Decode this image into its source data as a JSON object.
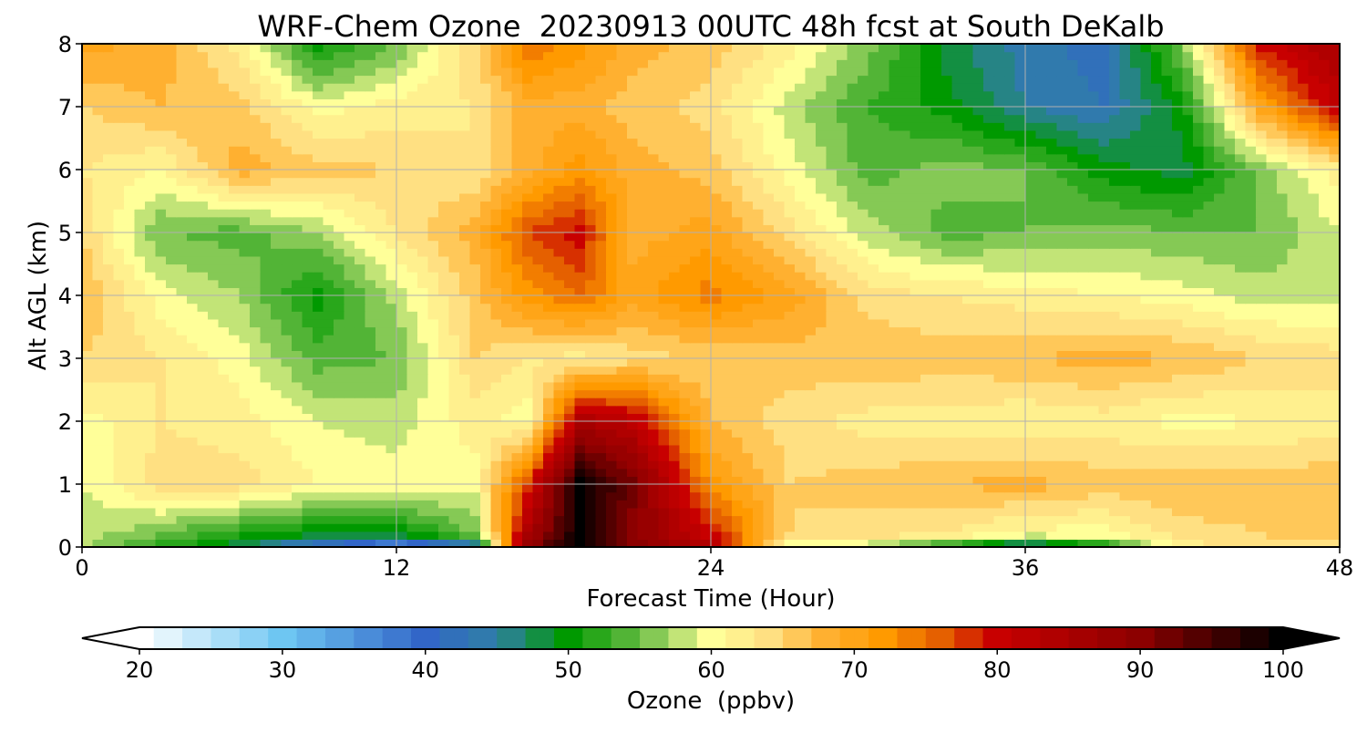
{
  "chart_data": {
    "type": "heatmap",
    "title": "WRF-Chem Ozone  20230913 00UTC 48h fcst at South DeKalb",
    "xlabel": "Forecast Time (Hour)",
    "ylabel": "Alt AGL (km)",
    "xlim": [
      0,
      48
    ],
    "ylim": [
      0,
      8
    ],
    "xticks": [
      0,
      12,
      24,
      36,
      48
    ],
    "yticks": [
      0,
      1,
      2,
      3,
      4,
      5,
      6,
      7,
      8
    ],
    "grid": true,
    "x": [
      0,
      3,
      6,
      9,
      12,
      15,
      17,
      19,
      21,
      24,
      27,
      30,
      33,
      36,
      39,
      42,
      45,
      48
    ],
    "y": [
      0,
      0.2,
      1,
      2,
      3,
      4,
      5,
      6,
      7,
      8
    ],
    "z": [
      [
        57,
        52,
        47,
        40,
        32,
        42,
        90,
        100,
        90,
        85,
        59,
        57,
        50,
        42,
        49,
        62,
        64,
        62
      ],
      [
        58,
        55,
        51,
        49,
        49,
        55,
        85,
        100,
        90,
        80,
        65,
        64,
        63,
        60,
        60,
        64,
        65,
        66
      ],
      [
        59,
        64,
        64,
        61,
        60,
        60,
        78,
        100,
        92,
        72,
        65,
        66,
        67,
        68,
        66,
        67,
        66,
        67
      ],
      [
        60,
        63,
        62,
        59,
        58,
        62,
        60,
        85,
        82,
        67,
        64,
        62,
        62,
        61,
        62,
        60,
        61,
        62
      ],
      [
        65,
        63,
        60,
        54,
        55,
        65,
        63,
        62,
        64,
        65,
        66,
        67,
        66,
        67,
        68,
        67,
        65,
        64
      ],
      [
        67,
        60,
        57,
        50,
        58,
        66,
        72,
        75,
        70,
        74,
        70,
        64,
        63,
        62,
        61,
        60,
        58,
        58
      ],
      [
        65,
        55,
        54,
        57,
        63,
        68,
        77,
        80,
        68,
        70,
        64,
        58,
        54,
        55,
        56,
        55,
        55,
        59
      ],
      [
        63,
        61,
        68,
        66,
        65,
        63,
        68,
        72,
        68,
        66,
        60,
        54,
        56,
        55,
        50,
        48,
        56,
        62
      ],
      [
        65,
        67,
        66,
        60,
        62,
        63,
        68,
        68,
        66,
        64,
        58,
        53,
        50,
        45,
        43,
        50,
        70,
        82
      ],
      [
        70,
        68,
        62,
        50,
        55,
        65,
        75,
        72,
        68,
        66,
        62,
        56,
        48,
        44,
        42,
        56,
        80,
        85
      ]
    ],
    "colorbar": {
      "label": "Ozone  (ppbv)",
      "min": 20,
      "max": 100,
      "ticks": [
        20,
        30,
        40,
        50,
        60,
        70,
        80,
        90,
        100
      ],
      "extend": "both",
      "stops": [
        {
          "v": 20,
          "c": "#ffffff"
        },
        {
          "v": 30,
          "c": "#6ec6f2"
        },
        {
          "v": 40,
          "c": "#3266c8"
        },
        {
          "v": 45,
          "c": "#2f7fa6"
        },
        {
          "v": 50,
          "c": "#009900"
        },
        {
          "v": 55,
          "c": "#66bb44"
        },
        {
          "v": 60,
          "c": "#ffff99"
        },
        {
          "v": 64,
          "c": "#ffe082"
        },
        {
          "v": 68,
          "c": "#ffb030"
        },
        {
          "v": 72,
          "c": "#ff9a00"
        },
        {
          "v": 76,
          "c": "#e56000"
        },
        {
          "v": 80,
          "c": "#c80000"
        },
        {
          "v": 90,
          "c": "#8c0000"
        },
        {
          "v": 100,
          "c": "#000000"
        }
      ]
    }
  }
}
